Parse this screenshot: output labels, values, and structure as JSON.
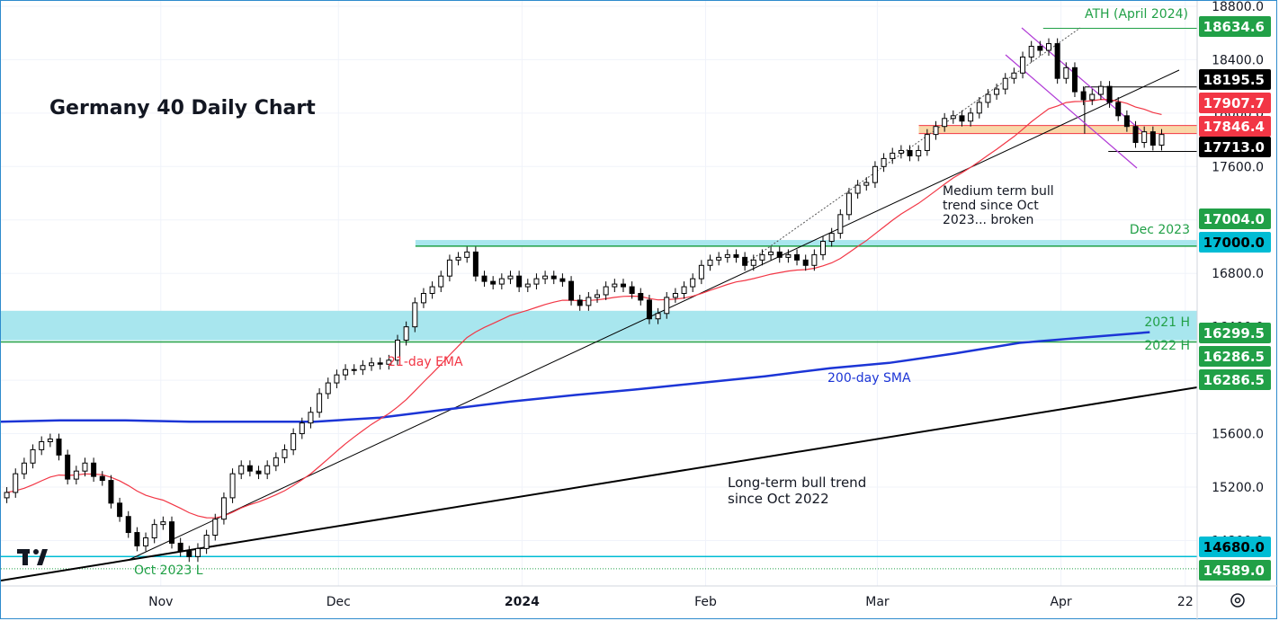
{
  "chart_data": {
    "type": "candlestick",
    "title": "Germany 40 Daily Chart",
    "y_ticks": [
      14800,
      15200,
      15600,
      16000,
      16400,
      16800,
      17200,
      17600,
      18000,
      18400,
      18800
    ],
    "y_tick_labels": [
      "14800.0",
      "15200.0",
      "15600.0",
      "16000.0",
      "16400.0",
      "16800.0",
      "17200.0",
      "17600.0",
      "18000.0",
      "18400.0",
      "18800.0"
    ],
    "ylim": [
      14460,
      18840
    ],
    "x_range": [
      "2023-10-05",
      "2024-04-24"
    ],
    "x_ticks": [
      {
        "label": "Nov",
        "date": "2023-11-01"
      },
      {
        "label": "Dec",
        "date": "2023-12-01"
      },
      {
        "label": "2024",
        "date": "2024-01-01"
      },
      {
        "label": "Feb",
        "date": "2024-02-01"
      },
      {
        "label": "Mar",
        "date": "2024-03-01"
      },
      {
        "label": "Apr",
        "date": "2024-04-01"
      },
      {
        "label": "22",
        "date": "2024-04-22"
      }
    ],
    "candles_close": [
      15160,
      15300,
      15380,
      15480,
      15540,
      15560,
      15440,
      15260,
      15320,
      15380,
      15280,
      15250,
      15080,
      14980,
      14860,
      14760,
      14820,
      14920,
      14940,
      14780,
      14720,
      14680,
      14740,
      14840,
      14960,
      15120,
      15300,
      15360,
      15320,
      15300,
      15360,
      15420,
      15480,
      15600,
      15680,
      15760,
      15900,
      15980,
      16040,
      16080,
      16080,
      16110,
      16130,
      16120,
      16150,
      16300,
      16400,
      16580,
      16650,
      16700,
      16780,
      16900,
      16920,
      16960,
      16780,
      16740,
      16720,
      16760,
      16780,
      16700,
      16720,
      16760,
      16780,
      16760,
      16740,
      16600,
      16560,
      16620,
      16640,
      16700,
      16720,
      16700,
      16650,
      16600,
      16460,
      16500,
      16620,
      16650,
      16700,
      16760,
      16860,
      16900,
      16920,
      16940,
      16920,
      16860,
      16900,
      16940,
      16960,
      16920,
      16940,
      16900,
      16860,
      16940,
      17040,
      17100,
      17240,
      17400,
      17460,
      17480,
      17600,
      17660,
      17700,
      17720,
      17680,
      17720,
      17840,
      17900,
      17960,
      17980,
      17940,
      18000,
      18080,
      18140,
      18180,
      18260,
      18300,
      18420,
      18500,
      18470,
      18520,
      18260,
      18340,
      18160,
      18100,
      18140,
      18200,
      18080,
      17980,
      17900,
      17780,
      17860,
      17760,
      17840
    ],
    "series": [
      {
        "name": "21-day EMA"
      },
      {
        "name": "200-day SMA",
        "values": [
          15690,
          15700,
          15700,
          15690,
          15690,
          15690,
          15720,
          15780,
          15840,
          15890,
          15930,
          15980,
          16030,
          16090,
          16130,
          16200,
          16280,
          16320,
          16360
        ]
      }
    ],
    "levels": [
      {
        "label": "ATH (April 2024)",
        "value": 18634.6
      },
      {
        "label": "Dec 2023",
        "value": 17004.0
      },
      {
        "label": "2021 H",
        "value": 16299.5
      },
      {
        "label": "2022 H",
        "value": 16286.5
      },
      {
        "label": "Oct 2023 L",
        "value": 14589.0
      }
    ],
    "price_tags": [
      {
        "text": "18634.6",
        "value": 18634.6,
        "bg": "#21a047",
        "color": "#ffffff"
      },
      {
        "text": "18195.5",
        "value": 18195.5,
        "bg": "#000000",
        "color": "#ffffff"
      },
      {
        "text": "17907.7",
        "value": 17907.7,
        "bg": "#f23645",
        "color": "#ffffff"
      },
      {
        "text": "17846.4",
        "value": 17846.4,
        "bg": "#f23645",
        "color": "#ffffff"
      },
      {
        "text": "17713.0",
        "value": 17713.0,
        "bg": "#000000",
        "color": "#ffffff"
      },
      {
        "text": "17004.0",
        "value": 17004.0,
        "bg": "#21a047",
        "color": "#ffffff"
      },
      {
        "text": "17000.0",
        "value": 17000.0,
        "bg": "#00bcd4",
        "color": "#000000"
      },
      {
        "text": "16299.5",
        "value": 16299.5,
        "bg": "#21a047",
        "color": "#ffffff"
      },
      {
        "text": "16286.5",
        "value": 16286.5,
        "bg": "#21a047",
        "color": "#ffffff"
      },
      {
        "text": "16286.5",
        "value": 16286.5,
        "bg": "#21a047",
        "color": "#ffffff"
      },
      {
        "text": "14680.0",
        "value": 14680.0,
        "bg": "#00bcd4",
        "color": "#000000"
      },
      {
        "text": "14589.0",
        "value": 14589.0,
        "bg": "#21a047",
        "color": "#ffffff"
      }
    ],
    "annotations": {
      "medium_trend": [
        "Medium term bull",
        "trend since Oct",
        "2023... broken"
      ],
      "long_trend": [
        "Long-term bull trend",
        "since Oct 2022"
      ],
      "ema_label": "21-day EMA",
      "sma_label": "200-day SMA"
    },
    "colors": {
      "candle_up": "#ffffff",
      "candle_down": "#000000",
      "ema": "#f23645",
      "sma": "#1c35d6",
      "zone": "#a8e6ee",
      "level_line": "#21a047",
      "channel": "#b03ad6",
      "resistance_zone": "#f7c98a"
    }
  },
  "logo_icon": "tradingview-logo-icon",
  "settings_icon": "gear-icon"
}
